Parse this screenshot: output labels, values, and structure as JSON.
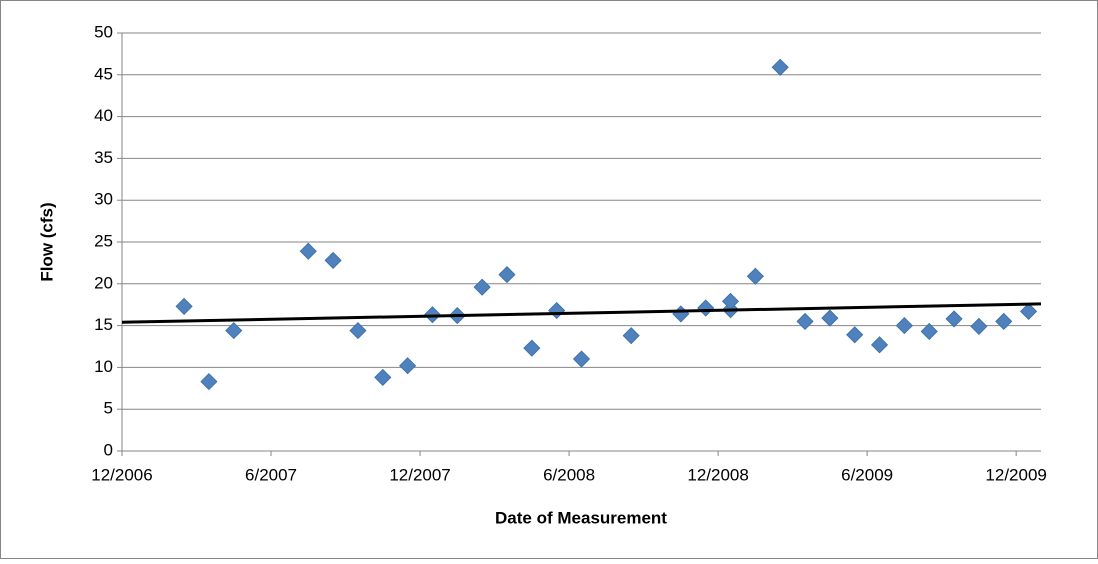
{
  "chart_data": {
    "type": "scatter",
    "x_label": "Date of Measurement",
    "y_label": "Flow (cfs)",
    "x": [
      "2/2007",
      "3/2007",
      "4/2007",
      "7/2007",
      "8/2007",
      "9/2007",
      "10/2007",
      "11/2007",
      "12/2007",
      "1/2008",
      "2/2008",
      "3/2008",
      "4/2008",
      "5/2008",
      "6/2008",
      "8/2008",
      "10/2008",
      "11/2008",
      "12/2008",
      "12/2008",
      "1/2009",
      "2/2009",
      "3/2009",
      "4/2009",
      "5/2009",
      "6/2009",
      "7/2009",
      "8/2009",
      "9/2009",
      "10/2009",
      "11/2009",
      "12/2009"
    ],
    "series": [
      {
        "color": "#4f81bd",
        "values": [
          17.3,
          8.3,
          14.4,
          23.9,
          22.8,
          14.4,
          8.8,
          10.2,
          16.3,
          16.2,
          19.6,
          21.1,
          12.3,
          16.8,
          11.0,
          13.8,
          16.4,
          17.1,
          16.9,
          17.9,
          20.9,
          45.9,
          15.5,
          15.9,
          13.9,
          12.7,
          15.0,
          14.3,
          15.8,
          14.9,
          15.5,
          16.7
        ]
      }
    ],
    "trendline": {
      "color": "#000000",
      "values": [
        15.4,
        17.6
      ]
    },
    "xlim": [
      "12/2006",
      "1/2010"
    ],
    "xticks": [
      "12/2006",
      "6/2007",
      "12/2007",
      "6/2008",
      "12/2008",
      "6/2009",
      "12/2009"
    ],
    "ylim": [
      0,
      50
    ],
    "yticks": [
      0,
      5,
      10,
      15,
      20,
      25,
      30,
      35,
      40,
      45,
      50
    ],
    "grid": true
  }
}
